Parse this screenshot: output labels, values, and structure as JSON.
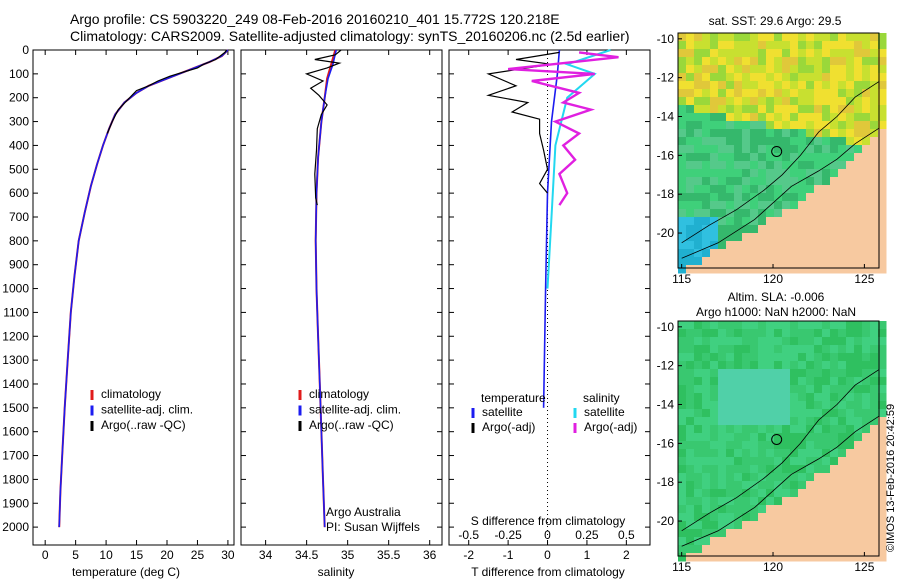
{
  "header": {
    "line1": "Argo profile: CS 5903220_249 08-Feb-2016 20160210_401 15.772S 120.218E",
    "line2": "Climatology: CARS2009. Satellite-adjusted climatology: synTS_20160206.nc (2.5d earlier)"
  },
  "colors": {
    "climatology": "#e01b1b",
    "satellite": "#1c1cf0",
    "argo": "#000000",
    "sal_sat": "#22d8f0",
    "sal_argo": "#e020e0",
    "land": "#f7c9a0"
  },
  "chart_data": [
    {
      "type": "line",
      "name": "temperature-profile",
      "xlabel": "temperature (deg C)",
      "ylabel": "",
      "xlim": [
        -2,
        31
      ],
      "ylim": [
        2075,
        0
      ],
      "xticks": [
        "0",
        "5",
        "10",
        "15",
        "20",
        "25",
        "30"
      ],
      "yticks": [
        "0",
        "100",
        "200",
        "300",
        "400",
        "500",
        "600",
        "700",
        "800",
        "900",
        "1000",
        "1100",
        "1200",
        "1300",
        "1400",
        "1500",
        "1600",
        "1700",
        "1800",
        "1900",
        "2000"
      ],
      "legend": [
        "climatology",
        "satellite-adj. clim.",
        "Argo(..raw -QC)"
      ],
      "series": [
        {
          "name": "climatology",
          "points": [
            [
              30,
              0
            ],
            [
              29,
              25
            ],
            [
              27,
              50
            ],
            [
              24,
              80
            ],
            [
              21,
              110
            ],
            [
              17,
              150
            ],
            [
              15,
              180
            ],
            [
              13,
              220
            ],
            [
              11.5,
              270
            ],
            [
              10.5,
              330
            ],
            [
              9.5,
              400
            ],
            [
              8.5,
              480
            ],
            [
              7.5,
              570
            ],
            [
              6.5,
              680
            ],
            [
              5.5,
              800
            ],
            [
              4.8,
              950
            ],
            [
              4.2,
              1100
            ],
            [
              3.7,
              1300
            ],
            [
              3.2,
              1500
            ],
            [
              2.8,
              1700
            ],
            [
              2.5,
              1850
            ],
            [
              2.3,
              2000
            ]
          ]
        },
        {
          "name": "satellite-adj. clim.",
          "points": [
            [
              30,
              0
            ],
            [
              29,
              25
            ],
            [
              27,
              50
            ],
            [
              24,
              80
            ],
            [
              21,
              110
            ],
            [
              17,
              150
            ],
            [
              15,
              180
            ],
            [
              13,
              220
            ],
            [
              11.5,
              270
            ],
            [
              10.5,
              330
            ],
            [
              9.5,
              400
            ],
            [
              8.5,
              480
            ],
            [
              7.5,
              570
            ],
            [
              6.5,
              680
            ],
            [
              5.5,
              800
            ],
            [
              4.8,
              950
            ],
            [
              4.2,
              1100
            ],
            [
              3.7,
              1300
            ],
            [
              3.2,
              1500
            ],
            [
              2.8,
              1700
            ],
            [
              2.5,
              1850
            ],
            [
              2.3,
              2000
            ]
          ]
        },
        {
          "name": "Argo",
          "points": [
            [
              29.8,
              0
            ],
            [
              29.5,
              10
            ],
            [
              28,
              40
            ],
            [
              26,
              60
            ],
            [
              25,
              75
            ],
            [
              23,
              90
            ],
            [
              20.5,
              110
            ],
            [
              18.5,
              130
            ],
            [
              17,
              150
            ],
            [
              15,
              170
            ],
            [
              13.5,
              210
            ],
            [
              12,
              250
            ],
            [
              11,
              300
            ],
            [
              10.2,
              350
            ]
          ]
        }
      ]
    },
    {
      "type": "line",
      "name": "salinity-profile",
      "xlabel": "salinity",
      "xlim": [
        33.7,
        36.15
      ],
      "ylim": [
        2075,
        0
      ],
      "xticks": [
        "34",
        "34.5",
        "35",
        "35.5",
        "36"
      ],
      "legend": [
        "climatology",
        "satellite-adj. clim.",
        "Argo(..raw -QC)"
      ],
      "annotation": [
        "Argo Australia",
        "PI: Susan Wijffels"
      ],
      "series": [
        {
          "name": "climatology",
          "points": [
            [
              34.85,
              0
            ],
            [
              34.8,
              60
            ],
            [
              34.75,
              120
            ],
            [
              34.72,
              200
            ],
            [
              34.68,
              300
            ],
            [
              34.64,
              450
            ],
            [
              34.62,
              600
            ],
            [
              34.61,
              800
            ],
            [
              34.62,
              1000
            ],
            [
              34.64,
              1200
            ],
            [
              34.66,
              1400
            ],
            [
              34.68,
              1600
            ],
            [
              34.7,
              1800
            ],
            [
              34.72,
              2000
            ]
          ]
        },
        {
          "name": "satellite-adj. clim.",
          "points": [
            [
              34.86,
              0
            ],
            [
              34.82,
              60
            ],
            [
              34.76,
              120
            ],
            [
              34.72,
              200
            ],
            [
              34.68,
              300
            ],
            [
              34.64,
              450
            ],
            [
              34.62,
              600
            ],
            [
              34.61,
              800
            ],
            [
              34.62,
              1000
            ],
            [
              34.64,
              1200
            ],
            [
              34.66,
              1400
            ],
            [
              34.68,
              1600
            ],
            [
              34.7,
              1800
            ],
            [
              34.72,
              2000
            ]
          ]
        },
        {
          "name": "Argo",
          "points": [
            [
              34.92,
              0
            ],
            [
              34.85,
              20
            ],
            [
              34.6,
              40
            ],
            [
              34.9,
              55
            ],
            [
              34.75,
              75
            ],
            [
              34.5,
              100
            ],
            [
              34.7,
              130
            ],
            [
              34.55,
              160
            ],
            [
              34.65,
              190
            ],
            [
              34.75,
              230
            ],
            [
              34.68,
              270
            ],
            [
              34.63,
              330
            ],
            [
              34.62,
              420
            ],
            [
              34.6,
              520
            ],
            [
              34.61,
              620
            ],
            [
              34.63,
              650
            ]
          ]
        }
      ]
    },
    {
      "type": "line",
      "name": "difference-profile",
      "xlabel": "T difference from climatology",
      "xlabel_top": "S difference from climatology",
      "xlim": [
        -2.5,
        2.6
      ],
      "ylim": [
        2075,
        0
      ],
      "xticks": [
        "-2",
        "-1",
        "0",
        "1",
        "2"
      ],
      "xticks_top": [
        "-0.5",
        "-0.25",
        "0",
        "0.25",
        "0.5"
      ],
      "legend_titles": [
        "temperature",
        "salinity"
      ],
      "legend": [
        "satellite",
        "Argo(-adj)",
        "satellite",
        "Argo(-adj)"
      ],
      "series": [
        {
          "name": "temperature satellite",
          "points": [
            [
              0.3,
              0
            ],
            [
              0.25,
              100
            ],
            [
              0.1,
              300
            ],
            [
              0,
              600
            ],
            [
              -0.05,
              1000
            ],
            [
              -0.1,
              1500
            ]
          ]
        },
        {
          "name": "temperature Argo",
          "points": [
            [
              0.3,
              10
            ],
            [
              -0.8,
              40
            ],
            [
              0.1,
              60
            ],
            [
              -1.5,
              100
            ],
            [
              -0.8,
              150
            ],
            [
              -1.5,
              190
            ],
            [
              -0.5,
              220
            ],
            [
              -0.9,
              260
            ],
            [
              -0.2,
              290
            ],
            [
              -0.2,
              350
            ],
            [
              -0.1,
              420
            ],
            [
              0,
              500
            ],
            [
              -0.2,
              560
            ],
            [
              0,
              600
            ]
          ]
        },
        {
          "name": "salinity satellite",
          "points": [
            [
              1.6,
              0
            ],
            [
              0.5,
              60
            ],
            [
              1.2,
              100
            ],
            [
              0.5,
              200
            ],
            [
              0.2,
              400
            ],
            [
              0.1,
              700
            ],
            [
              0,
              1000
            ]
          ]
        },
        {
          "name": "salinity Argo",
          "points": [
            [
              0.8,
              10
            ],
            [
              1.8,
              30
            ],
            [
              -1.0,
              80
            ],
            [
              1.2,
              100
            ],
            [
              -0.4,
              130
            ],
            [
              0.8,
              180
            ],
            [
              0.4,
              220
            ],
            [
              1.1,
              250
            ],
            [
              0.2,
              300
            ],
            [
              0.8,
              350
            ],
            [
              0.4,
              400
            ],
            [
              0.7,
              460
            ],
            [
              0.3,
              520
            ],
            [
              0.5,
              600
            ],
            [
              0.3,
              650
            ]
          ]
        }
      ]
    },
    {
      "type": "heatmap",
      "name": "sst-map",
      "title": "sat. SST: 29.6 Argo: 29.5",
      "xticks": [
        "115",
        "120",
        "125"
      ],
      "yticks": [
        "-10",
        "-12",
        "-14",
        "-16",
        "-18",
        "-20"
      ],
      "xlim": [
        114.8,
        125.8
      ],
      "ylim": [
        -21.8,
        -9.7
      ],
      "argo_position": [
        120.2,
        -15.8
      ]
    },
    {
      "type": "heatmap",
      "name": "sla-map",
      "title": "Altim. SLA: -0.006",
      "subtitle": "Argo h1000: NaN h2000: NaN",
      "xticks": [
        "115",
        "120",
        "125"
      ],
      "yticks": [
        "-10",
        "-12",
        "-14",
        "-16",
        "-18",
        "-20"
      ],
      "xlim": [
        114.8,
        125.8
      ],
      "ylim": [
        -21.8,
        -9.7
      ],
      "argo_position": [
        120.2,
        -15.8
      ]
    }
  ],
  "watermark": "©IMOS 13-Feb-2016 20:42:59"
}
